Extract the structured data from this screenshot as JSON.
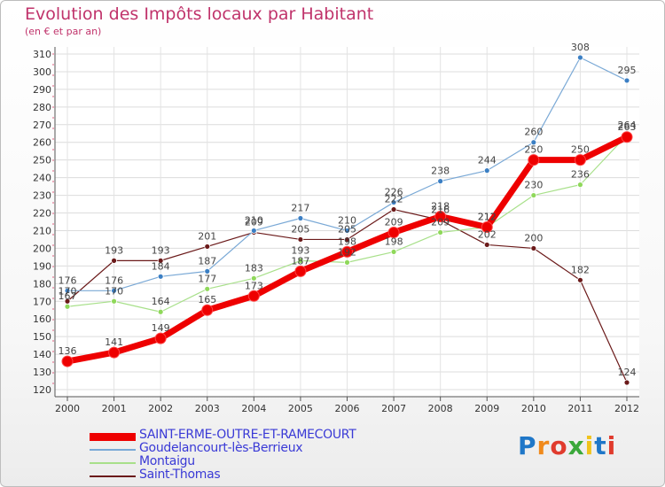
{
  "header": {
    "title": "Evolution des Impôts locaux par Habitant",
    "subtitle": "(en € et par an)"
  },
  "logo": {
    "text": "Proxiti"
  },
  "chart_data": {
    "type": "line",
    "x": [
      2000,
      2001,
      2002,
      2003,
      2004,
      2005,
      2006,
      2007,
      2008,
      2009,
      2010,
      2011,
      2012
    ],
    "ylim": [
      120,
      310
    ],
    "yticks": [
      120,
      130,
      140,
      150,
      160,
      170,
      180,
      190,
      200,
      210,
      220,
      230,
      240,
      250,
      260,
      270,
      280,
      290,
      300,
      310
    ],
    "grid": true,
    "legend_position": "bottom-left",
    "series": [
      {
        "name": "Saint-Thomas",
        "color": "#6b1a1a",
        "marker": "#6b1a1a",
        "width": 1.2,
        "values": [
          170,
          193,
          193,
          201,
          209,
          205,
          205,
          222,
          216,
          202,
          200,
          182,
          124
        ]
      },
      {
        "name": "Montaigu",
        "color": "#a8e08a",
        "marker": "#8fd85a",
        "width": 1.2,
        "values": [
          167,
          170,
          164,
          177,
          183,
          193,
          192,
          198,
          209,
          212,
          230,
          236,
          264
        ]
      },
      {
        "name": "Goudelancourt-lès-Berrieux",
        "color": "#7aa9d6",
        "marker": "#3b7fc4",
        "width": 1.2,
        "values": [
          176,
          176,
          184,
          187,
          210,
          217,
          210,
          226,
          238,
          244,
          260,
          308,
          295
        ]
      },
      {
        "name": "SAINT-ERME-OUTRE-ET-RAMECOURT",
        "color": "#ee0000",
        "marker": "#ee0000",
        "width": 7,
        "values": [
          136,
          141,
          149,
          165,
          173,
          187,
          198,
          209,
          218,
          212,
          250,
          250,
          263
        ]
      }
    ],
    "legend_order": [
      "SAINT-ERME-OUTRE-ET-RAMECOURT",
      "Goudelancourt-lès-Berrieux",
      "Montaigu",
      "Saint-Thomas"
    ]
  }
}
